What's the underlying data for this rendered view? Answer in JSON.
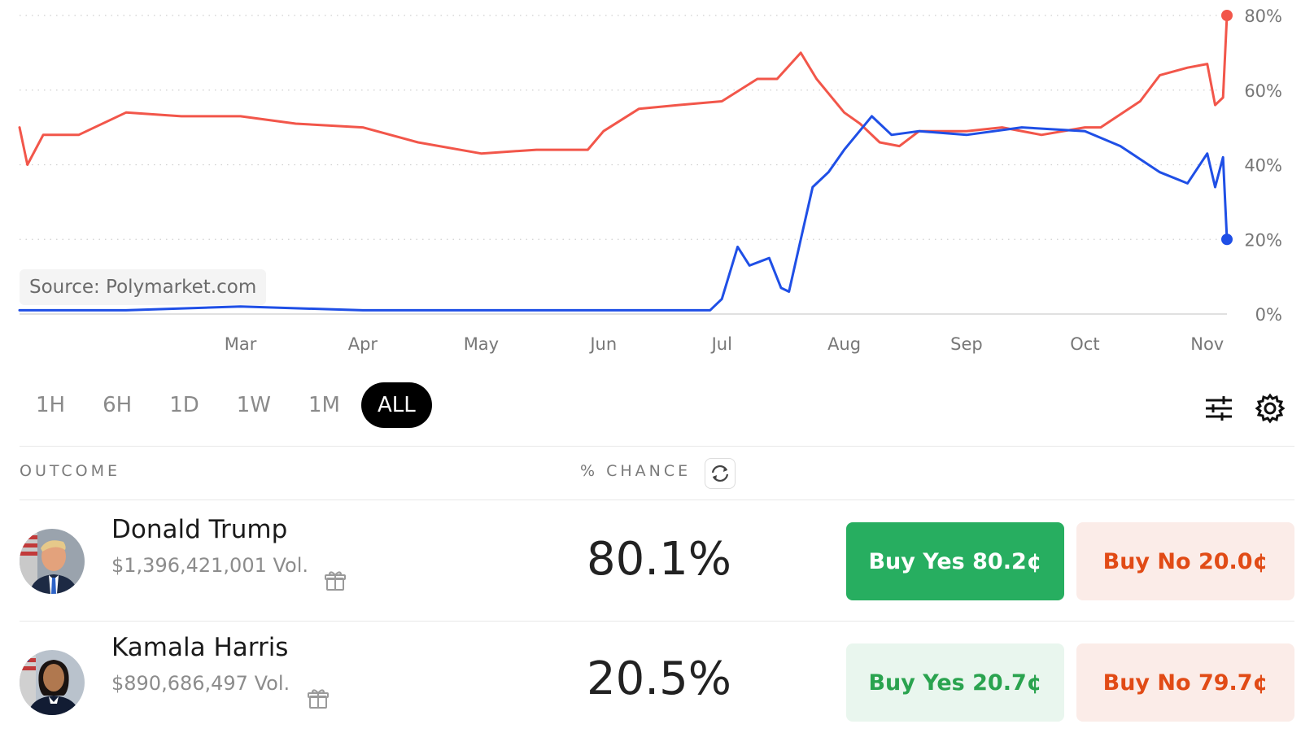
{
  "chart": {
    "source_label": "Source: Polymarket.com",
    "trump_color": "#f2564a",
    "harris_color": "#1f4fe6"
  },
  "chart_data": {
    "type": "line",
    "title": "",
    "xlabel": "",
    "ylabel": "",
    "x_ticks": [
      "Mar",
      "Apr",
      "May",
      "Jun",
      "Jul",
      "Aug",
      "Sep",
      "Oct",
      "Nov"
    ],
    "y_ticks": [
      "0%",
      "20%",
      "40%",
      "60%",
      "80%"
    ],
    "ylim": [
      0,
      80
    ],
    "grid": true,
    "series": [
      {
        "color": "#f2564a",
        "x": [
          "2024-01-05",
          "2024-01-07",
          "2024-01-11",
          "2024-01-20",
          "2024-02-01",
          "2024-02-15",
          "2024-03-01",
          "2024-03-15",
          "2024-04-01",
          "2024-04-15",
          "2024-05-01",
          "2024-05-15",
          "2024-05-28",
          "2024-06-01",
          "2024-06-10",
          "2024-06-20",
          "2024-07-01",
          "2024-07-10",
          "2024-07-15",
          "2024-07-21",
          "2024-07-25",
          "2024-08-01",
          "2024-08-05",
          "2024-08-10",
          "2024-08-15",
          "2024-08-20",
          "2024-09-01",
          "2024-09-10",
          "2024-09-20",
          "2024-10-01",
          "2024-10-05",
          "2024-10-15",
          "2024-10-20",
          "2024-10-27",
          "2024-11-01",
          "2024-11-03",
          "2024-11-05",
          "2024-11-06"
        ],
        "y": [
          50,
          40,
          48,
          48,
          54,
          53,
          53,
          51,
          50,
          46,
          43,
          44,
          44,
          49,
          55,
          56,
          57,
          63,
          63,
          70,
          63,
          54,
          51,
          46,
          45,
          49,
          49,
          50,
          48,
          50,
          50,
          57,
          64,
          66,
          67,
          56,
          58,
          80
        ]
      },
      {
        "color": "#1f4fe6",
        "x": [
          "2024-01-05",
          "2024-02-01",
          "2024-03-01",
          "2024-04-01",
          "2024-05-01",
          "2024-06-01",
          "2024-06-28",
          "2024-07-01",
          "2024-07-05",
          "2024-07-08",
          "2024-07-13",
          "2024-07-16",
          "2024-07-18",
          "2024-07-21",
          "2024-07-24",
          "2024-07-28",
          "2024-08-01",
          "2024-08-08",
          "2024-08-13",
          "2024-08-20",
          "2024-09-01",
          "2024-09-15",
          "2024-10-01",
          "2024-10-10",
          "2024-10-20",
          "2024-10-27",
          "2024-11-01",
          "2024-11-03",
          "2024-11-05",
          "2024-11-06"
        ],
        "y": [
          1,
          1,
          2,
          1,
          1,
          1,
          1,
          4,
          18,
          13,
          15,
          7,
          6,
          20,
          34,
          38,
          44,
          53,
          48,
          49,
          48,
          50,
          49,
          45,
          38,
          35,
          43,
          34,
          42,
          20
        ]
      }
    ]
  },
  "time_ranges": {
    "items": [
      "1H",
      "6H",
      "1D",
      "1W",
      "1M",
      "ALL"
    ],
    "active": "ALL"
  },
  "table": {
    "col_outcome": "OUTCOME",
    "col_chance": "% CHANCE"
  },
  "outcomes": [
    {
      "name": "Donald Trump",
      "volume": "$1,396,421,001 Vol.",
      "chance": "80.1%",
      "buy_yes": "Buy Yes 80.2¢",
      "buy_no": "Buy No 20.0¢"
    },
    {
      "name": "Kamala Harris",
      "volume": "$890,686,497 Vol.",
      "chance": "20.5%",
      "buy_yes": "Buy Yes 20.7¢",
      "buy_no": "Buy No 79.7¢"
    }
  ],
  "icons": {
    "filter": "sliders-icon",
    "settings": "gear-icon",
    "refresh": "refresh-icon",
    "gift": "gift-icon"
  }
}
